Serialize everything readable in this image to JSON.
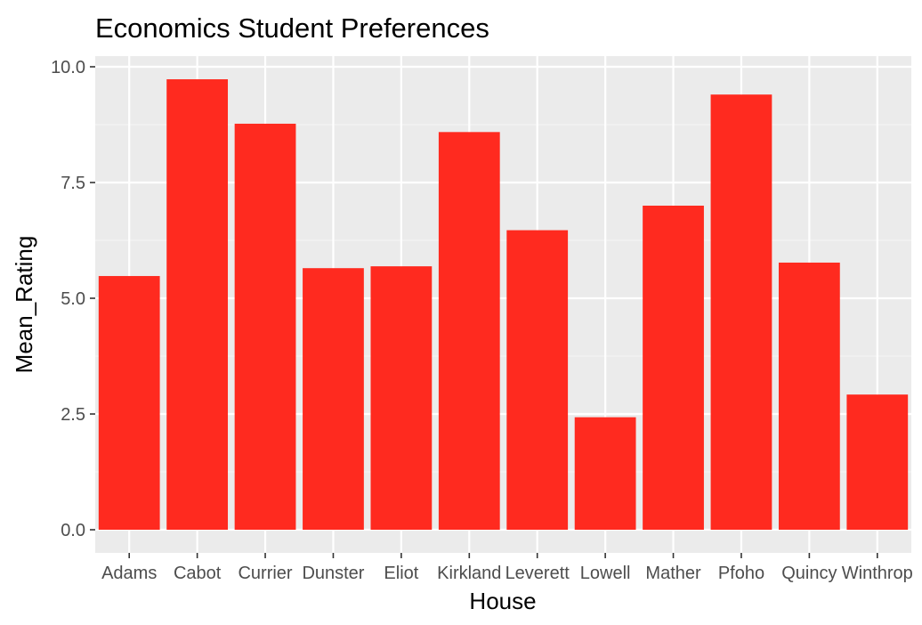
{
  "chart_data": {
    "type": "bar",
    "title": "Economics Student Preferences",
    "xlabel": "House",
    "ylabel": "Mean_Rating",
    "categories": [
      "Adams",
      "Cabot",
      "Currier",
      "Dunster",
      "Eliot",
      "Kirkland",
      "Leverett",
      "Lowell",
      "Mather",
      "Pfoho",
      "Quincy",
      "Winthrop"
    ],
    "values": [
      5.48,
      9.73,
      8.77,
      5.65,
      5.69,
      8.59,
      6.47,
      2.43,
      7.0,
      9.4,
      5.77,
      2.92
    ],
    "ylim": [
      0,
      10.5
    ],
    "yticks": [
      0,
      2.5,
      5,
      7.5,
      10
    ],
    "ytick_labels": [
      "0.0",
      "2.5",
      "5.0",
      "7.5",
      "10.0"
    ],
    "grid": true,
    "legend": "none",
    "colors": {
      "bar": "#FF2A1F",
      "panel_background": "#EBEBEB",
      "grid_major": "#FFFFFF",
      "grid_minor": "#F4F4F4",
      "tick_text": "#4D4D4D",
      "tick_mark": "#333333",
      "title_text": "#000000"
    }
  }
}
